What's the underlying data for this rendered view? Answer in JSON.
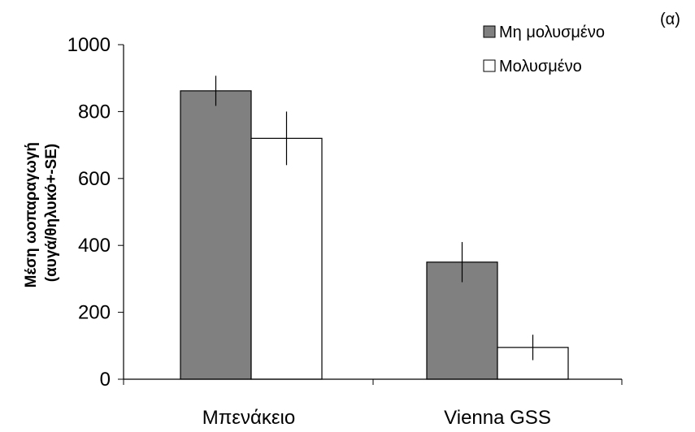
{
  "chart_data": {
    "type": "bar",
    "title": "",
    "panel_label": "(α)",
    "categories": [
      "Μπενάκειο",
      "Vienna GSS"
    ],
    "series": [
      {
        "name": "Μη μολυσμένο",
        "values": [
          862,
          350
        ],
        "error": [
          45,
          60
        ],
        "color": "#808080"
      },
      {
        "name": "Μολυσμένο",
        "values": [
          720,
          95
        ],
        "error": [
          80,
          38
        ],
        "color": "#ffffff"
      }
    ],
    "xlabel": "",
    "ylabel_lines": [
      "Μέση ωοπαραγωγή",
      "(αυγά/θηλυκό+-SE)"
    ],
    "ylim": [
      0,
      1000
    ],
    "yticks": [
      0,
      200,
      400,
      600,
      800,
      1000
    ],
    "grid": false,
    "legend": "top-right"
  }
}
